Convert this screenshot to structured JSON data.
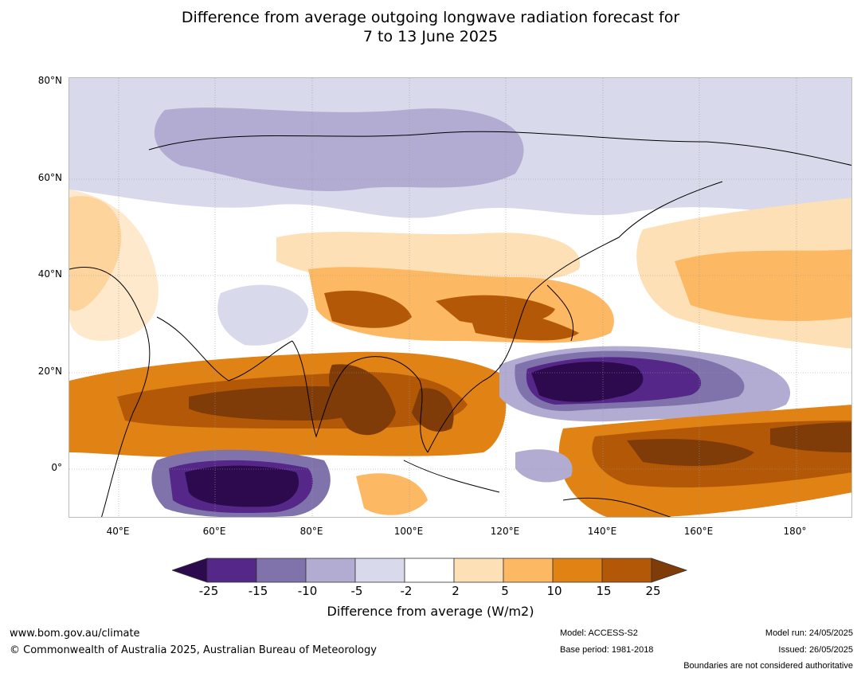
{
  "title_line1": "Difference from average outgoing longwave radiation forecast for",
  "title_line2": "7 to 13 June 2025",
  "lat_labels": [
    "80°N",
    "60°N",
    "40°N",
    "20°N",
    "0°"
  ],
  "lon_labels": [
    "40°E",
    "60°E",
    "80°E",
    "100°E",
    "120°E",
    "140°E",
    "160°E",
    "180°"
  ],
  "colorbar": {
    "ticks": [
      "-25",
      "-15",
      "-10",
      "-5",
      "-2",
      "2",
      "5",
      "10",
      "15",
      "25"
    ],
    "colors": [
      "#2d0a4e",
      "#542788",
      "#8073ac",
      "#b2abd2",
      "#d8daeb",
      "#ffffff",
      "#fee0b6",
      "#fdb863",
      "#e08214",
      "#b35806",
      "#7f3b08"
    ],
    "label": "Difference from average (W/m2)"
  },
  "footer": {
    "url": "www.bom.gov.au/climate",
    "copyright": "© Commonwealth of Australia 2025, Australian Bureau of Meteorology",
    "model": "Model: ACCESS-S2",
    "base_period": "Base period: 1981-2018",
    "model_run": "Model run: 24/05/2025",
    "issued": "Issued: 26/05/2025",
    "disclaimer": "Boundaries are not considered authoritative"
  }
}
